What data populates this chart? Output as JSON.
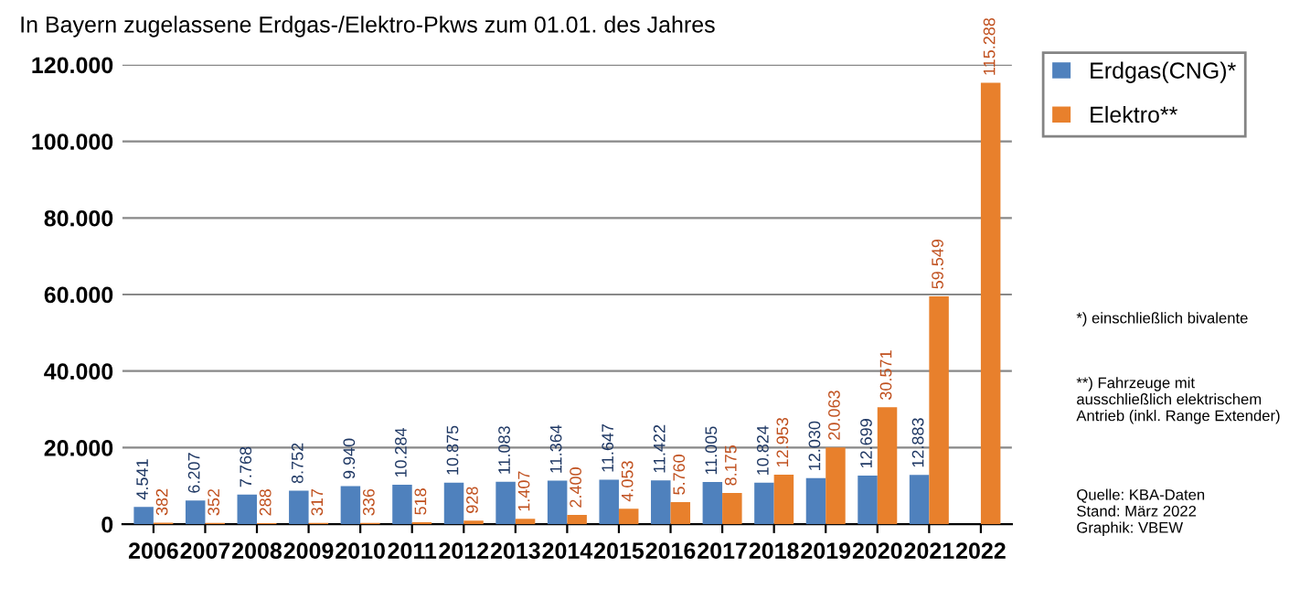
{
  "chart_data": {
    "type": "bar",
    "title": "In Bayern zugelassene Erdgas-/Elektro-Pkws zum 01.01. des Jahres",
    "categories": [
      "2006",
      "2007",
      "2008",
      "2009",
      "2010",
      "2011",
      "2012",
      "2013",
      "2014",
      "2015",
      "2016",
      "2017",
      "2018",
      "2019",
      "2020",
      "2021",
      "2022"
    ],
    "series": [
      {
        "name": "Erdgas(CNG)*",
        "color": "#4f81bd",
        "values": [
          4541,
          6207,
          7768,
          8752,
          9940,
          10284,
          10875,
          11083,
          11364,
          11647,
          11422,
          11005,
          10824,
          12030,
          12699,
          12883,
          null
        ],
        "value_labels": [
          "4.541",
          "6.207",
          "7.768",
          "8.752",
          "9.940",
          "10.284",
          "10.875",
          "11.083",
          "11.364",
          "11.647",
          "11.422",
          "11.005",
          "10.824",
          "12.030",
          "12.699",
          "12.883",
          null
        ]
      },
      {
        "name": "Elektro**",
        "color": "#e8802c",
        "values": [
          382,
          352,
          288,
          317,
          336,
          518,
          928,
          1407,
          2400,
          4053,
          5760,
          8175,
          12953,
          20063,
          30571,
          59549,
          115288
        ],
        "value_labels": [
          "382",
          "352",
          "288",
          "317",
          "336",
          "518",
          "928",
          "1.407",
          "2.400",
          "4.053",
          "5.760",
          "8.175",
          "12.953",
          "20.063",
          "30.571",
          "59.549",
          "115.288"
        ]
      }
    ],
    "ylim": [
      0,
      120000
    ],
    "yticks": [
      {
        "value": 0,
        "label": "0"
      },
      {
        "value": 20000,
        "label": "20.000"
      },
      {
        "value": 40000,
        "label": "40.000"
      },
      {
        "value": 60000,
        "label": "60.000"
      },
      {
        "value": 80000,
        "label": "80.000"
      },
      {
        "value": 100000,
        "label": "100.000"
      },
      {
        "value": 120000,
        "label": "120.000"
      }
    ],
    "grid": "y",
    "legend": "top right",
    "annotations": [
      "*) einschließlich bivalente",
      "**) Fahrzeuge mit ausschließlich elektrischem Antrieb (inkl. Range Extender)",
      "Quelle: KBA-Daten\nStand: März 2022\nGraphik: VBEW"
    ]
  }
}
